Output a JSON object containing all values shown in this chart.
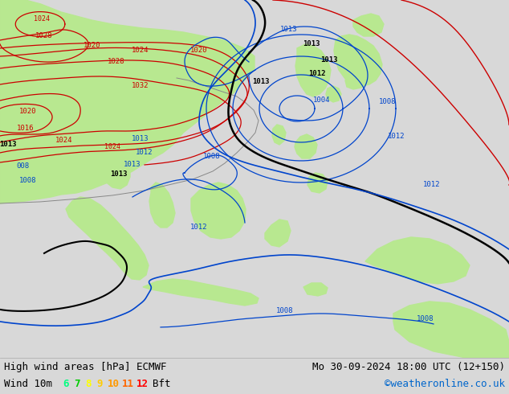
{
  "title_left": "High wind areas [hPa] ECMWF",
  "title_right": "Mo 30-09-2024 18:00 UTC (12+150)",
  "legend_label": "Wind 10m",
  "legend_values": [
    "6",
    "7",
    "8",
    "9",
    "10",
    "11",
    "12"
  ],
  "legend_colors": [
    "#00ff80",
    "#00cc00",
    "#ffff00",
    "#ffcc00",
    "#ff9900",
    "#ff6600",
    "#ff0000"
  ],
  "legend_suffix": "Bft",
  "copyright": "©weatheronline.co.uk",
  "bg_color": "#d8d8d8",
  "sea_color": "#d8d8d8",
  "land_color": "#b8e890",
  "font_size_label": 9,
  "font_size_title": 9,
  "contour_color_red": "#cc0000",
  "contour_color_blue": "#0044cc",
  "contour_color_black": "#000000",
  "gray_coast": "#888888"
}
